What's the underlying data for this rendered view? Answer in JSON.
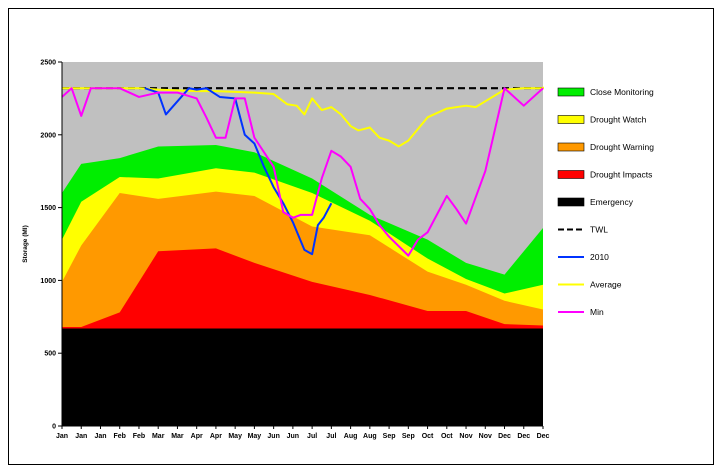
{
  "chart_data": {
    "type": "area",
    "ylabel": "Storage (Ml)",
    "xlabel": "",
    "title": "",
    "ylim": [
      0,
      2500
    ],
    "yticks": [
      0,
      500,
      1000,
      1500,
      2000,
      2500
    ],
    "x_tick_labels": [
      "Jan",
      "Jan",
      "Jan",
      "Feb",
      "Feb",
      "Mar",
      "Mar",
      "Apr",
      "Apr",
      "May",
      "May",
      "Jun",
      "Jun",
      "Jul",
      "Jul",
      "Aug",
      "Aug",
      "Sep",
      "Sep",
      "Oct",
      "Oct",
      "Nov",
      "Nov",
      "Dec",
      "Dec",
      "Dec"
    ],
    "grid": false,
    "legend_position": "right",
    "background_color": "#c0c0c0",
    "bands": [
      {
        "name": "Close Monitoring",
        "color": "#00ee00",
        "x": [
          0,
          1,
          3,
          5,
          8,
          10,
          13,
          16,
          19,
          21,
          23,
          25
        ],
        "upper": [
          1600,
          1800,
          1840,
          1920,
          1930,
          1880,
          1700,
          1450,
          1280,
          1120,
          1040,
          1360
        ],
        "upper_end": 1590
      },
      {
        "name": "Drought Watch",
        "color": "#ffff00",
        "x": [
          0,
          1,
          3,
          5,
          8,
          10,
          13,
          16,
          19,
          21,
          23,
          25
        ],
        "upper": [
          1280,
          1540,
          1710,
          1700,
          1770,
          1740,
          1600,
          1410,
          1150,
          1010,
          910,
          970
        ],
        "upper_end": 1260
      },
      {
        "name": "Drought Warning",
        "color": "#ff9900",
        "x": [
          0,
          1,
          3,
          5,
          8,
          10,
          13,
          16,
          19,
          21,
          23,
          25
        ],
        "upper": [
          990,
          1240,
          1600,
          1560,
          1610,
          1580,
          1370,
          1310,
          1060,
          970,
          860,
          800
        ],
        "upper_end": 990
      },
      {
        "name": "Drought Impacts",
        "color": "#ff0000",
        "x": [
          0,
          1,
          3,
          5,
          8,
          10,
          13,
          16,
          19,
          21,
          23,
          25
        ],
        "upper": [
          680,
          680,
          780,
          1200,
          1220,
          1120,
          990,
          900,
          790,
          790,
          700,
          690
        ],
        "upper_end": 680
      },
      {
        "name": "Emergency",
        "color": "#000000",
        "x": [
          0,
          25
        ],
        "upper": [
          670,
          670
        ],
        "upper_end": 670
      }
    ],
    "series": [
      {
        "name": "TWL",
        "color": "#000000",
        "style": "dashed",
        "x": [
          0,
          26
        ],
        "values": [
          2320,
          2320
        ]
      },
      {
        "name": "Average",
        "color": "#ffff00",
        "style": "solid",
        "x": [
          0,
          1,
          2,
          3,
          4,
          5,
          6,
          7,
          8,
          9,
          10,
          11,
          11.7,
          12.2,
          12.6,
          13,
          13.5,
          14,
          14.5,
          15,
          15.4,
          16,
          16.5,
          17,
          17.5,
          18,
          19,
          20,
          21,
          21.5,
          22,
          23,
          24,
          25,
          26
        ],
        "values": [
          2320,
          2320,
          2320,
          2320,
          2320,
          2310,
          2305,
          2300,
          2300,
          2295,
          2290,
          2280,
          2210,
          2200,
          2140,
          2250,
          2170,
          2190,
          2140,
          2060,
          2030,
          2050,
          1980,
          1960,
          1920,
          1960,
          2120,
          2180,
          2200,
          2190,
          2230,
          2310,
          2320,
          2320,
          2330
        ]
      },
      {
        "name": "2010",
        "color": "#0033ff",
        "style": "solid",
        "x": [
          4.3,
          5,
          5.4,
          6,
          6.6,
          7,
          7.5,
          8.2,
          9,
          9.5,
          10,
          10.5,
          11,
          11.5,
          12,
          12.6,
          13,
          13.3,
          13.6,
          14
        ],
        "values": [
          2320,
          2290,
          2140,
          2230,
          2320,
          2310,
          2320,
          2260,
          2250,
          2000,
          1940,
          1780,
          1640,
          1530,
          1400,
          1210,
          1180,
          1380,
          1430,
          1530
        ]
      },
      {
        "name": "Min",
        "color": "#ff00ff",
        "style": "solid",
        "x": [
          0,
          0.5,
          1,
          1.5,
          2,
          3,
          4,
          5,
          6,
          7,
          7.5,
          8,
          8.5,
          9,
          9.5,
          10,
          11,
          11.5,
          12,
          12.4,
          13,
          13.5,
          14,
          14.5,
          15,
          15.5,
          16,
          16.5,
          17,
          18,
          18.5,
          19,
          20,
          20.5,
          21,
          22,
          23,
          24,
          25,
          26
        ],
        "values": [
          2260,
          2320,
          2130,
          2320,
          2320,
          2320,
          2260,
          2290,
          2290,
          2250,
          2120,
          1980,
          1980,
          2250,
          2250,
          1980,
          1780,
          1470,
          1430,
          1450,
          1450,
          1700,
          1890,
          1850,
          1780,
          1560,
          1490,
          1380,
          1300,
          1170,
          1280,
          1330,
          1580,
          1490,
          1390,
          1750,
          2320,
          2200,
          2320,
          2320
        ]
      }
    ]
  },
  "legend": {
    "items": [
      {
        "label": "Close Monitoring",
        "kind": "box",
        "color": "#00ee00"
      },
      {
        "label": "Drought Watch",
        "kind": "box",
        "color": "#ffff00"
      },
      {
        "label": "Drought Warning",
        "kind": "box",
        "color": "#ff9900"
      },
      {
        "label": "Drought Impacts",
        "kind": "box",
        "color": "#ff0000"
      },
      {
        "label": "Emergency",
        "kind": "box",
        "color": "#000000"
      },
      {
        "label": "TWL",
        "kind": "dash",
        "color": "#000000"
      },
      {
        "label": "2010",
        "kind": "line",
        "color": "#0033ff"
      },
      {
        "label": "Average",
        "kind": "line",
        "color": "#ffff00"
      },
      {
        "label": "Min",
        "kind": "line",
        "color": "#ff00ff"
      }
    ]
  }
}
